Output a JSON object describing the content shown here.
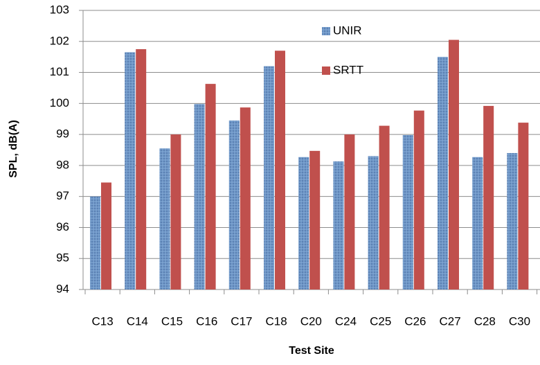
{
  "chart_data": {
    "type": "bar",
    "x_label": "Test Site",
    "y_label": "SPL, dB(A)",
    "categories": [
      "C13",
      "C14",
      "C15",
      "C16",
      "C17",
      "C18",
      "C20",
      "C24",
      "C25",
      "C26",
      "C27",
      "C28",
      "C30"
    ],
    "series": [
      {
        "name": "UNIR",
        "color": "#4f81bd",
        "values": [
          97.0,
          101.65,
          98.55,
          99.98,
          99.45,
          101.2,
          98.27,
          98.13,
          98.3,
          98.98,
          101.5,
          98.27,
          98.4
        ]
      },
      {
        "name": "SRTT",
        "color": "#c0504d",
        "values": [
          97.45,
          101.75,
          99.0,
          100.63,
          99.87,
          101.7,
          98.47,
          99.0,
          99.28,
          99.77,
          102.05,
          99.92,
          99.38
        ]
      }
    ],
    "ylim": [
      94,
      103
    ],
    "yticks": [
      94,
      95,
      96,
      97,
      98,
      99,
      100,
      101,
      102,
      103
    ],
    "grid": true
  }
}
